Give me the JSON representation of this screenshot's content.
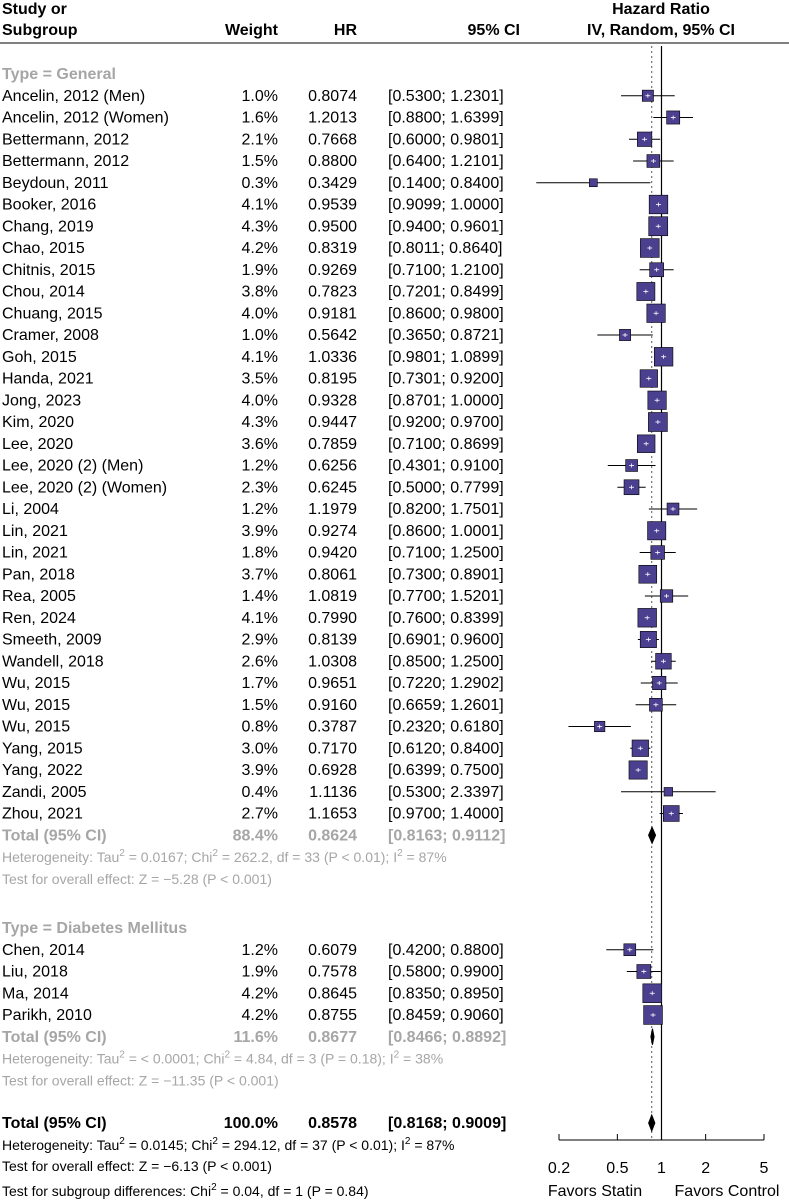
{
  "chart_data": {
    "type": "forest",
    "headers": {
      "study": [
        "Study or",
        "Subgroup"
      ],
      "weight": "Weight",
      "hr": "HR",
      "ci": "95% CI",
      "plot": [
        "Hazard Ratio",
        "IV, Random, 95% CI"
      ]
    },
    "subgroups": [
      {
        "label": "Type = General",
        "studies": [
          {
            "study": "Ancelin, 2012 (Men)",
            "weight": "1.0%",
            "hr": "0.8074",
            "ci": "[0.5300; 1.2301]",
            "est": 0.8074,
            "lo": 0.53,
            "hi": 1.2301
          },
          {
            "study": "Ancelin, 2012 (Women)",
            "weight": "1.6%",
            "hr": "1.2013",
            "ci": "[0.8800; 1.6399]",
            "est": 1.2013,
            "lo": 0.88,
            "hi": 1.6399
          },
          {
            "study": "Bettermann, 2012",
            "weight": "2.1%",
            "hr": "0.7668",
            "ci": "[0.6000; 0.9801]",
            "est": 0.7668,
            "lo": 0.6,
            "hi": 0.9801
          },
          {
            "study": "Bettermann, 2012",
            "weight": "1.5%",
            "hr": "0.8800",
            "ci": "[0.6400; 1.2101]",
            "est": 0.88,
            "lo": 0.64,
            "hi": 1.2101
          },
          {
            "study": "Beydoun, 2011",
            "weight": "0.3%",
            "hr": "0.3429",
            "ci": "[0.1400; 0.8400]",
            "est": 0.3429,
            "lo": 0.14,
            "hi": 0.84
          },
          {
            "study": "Booker, 2016",
            "weight": "4.1%",
            "hr": "0.9539",
            "ci": "[0.9099; 1.0000]",
            "est": 0.9539,
            "lo": 0.9099,
            "hi": 1.0
          },
          {
            "study": "Chang, 2019",
            "weight": "4.3%",
            "hr": "0.9500",
            "ci": "[0.9400; 0.9601]",
            "est": 0.95,
            "lo": 0.94,
            "hi": 0.9601
          },
          {
            "study": "Chao, 2015",
            "weight": "4.2%",
            "hr": "0.8319",
            "ci": "[0.8011; 0.8640]",
            "est": 0.8319,
            "lo": 0.8011,
            "hi": 0.864
          },
          {
            "study": "Chitnis, 2015",
            "weight": "1.9%",
            "hr": "0.9269",
            "ci": "[0.7100; 1.2100]",
            "est": 0.9269,
            "lo": 0.71,
            "hi": 1.21
          },
          {
            "study": "Chou, 2014",
            "weight": "3.8%",
            "hr": "0.7823",
            "ci": "[0.7201; 0.8499]",
            "est": 0.7823,
            "lo": 0.7201,
            "hi": 0.8499
          },
          {
            "study": "Chuang, 2015",
            "weight": "4.0%",
            "hr": "0.9181",
            "ci": "[0.8600; 0.9800]",
            "est": 0.9181,
            "lo": 0.86,
            "hi": 0.98
          },
          {
            "study": "Cramer, 2008",
            "weight": "1.0%",
            "hr": "0.5642",
            "ci": "[0.3650; 0.8721]",
            "est": 0.5642,
            "lo": 0.365,
            "hi": 0.8721
          },
          {
            "study": "Goh, 2015",
            "weight": "4.1%",
            "hr": "1.0336",
            "ci": "[0.9801; 1.0899]",
            "est": 1.0336,
            "lo": 0.9801,
            "hi": 1.0899
          },
          {
            "study": "Handa, 2021",
            "weight": "3.5%",
            "hr": "0.8195",
            "ci": "[0.7301; 0.9200]",
            "est": 0.8195,
            "lo": 0.7301,
            "hi": 0.92
          },
          {
            "study": "Jong, 2023",
            "weight": "4.0%",
            "hr": "0.9328",
            "ci": "[0.8701; 1.0000]",
            "est": 0.9328,
            "lo": 0.8701,
            "hi": 1.0
          },
          {
            "study": "Kim, 2020",
            "weight": "4.3%",
            "hr": "0.9447",
            "ci": "[0.9200; 0.9700]",
            "est": 0.9447,
            "lo": 0.92,
            "hi": 0.97
          },
          {
            "study": "Lee, 2020",
            "weight": "3.6%",
            "hr": "0.7859",
            "ci": "[0.7100; 0.8699]",
            "est": 0.7859,
            "lo": 0.71,
            "hi": 0.8699
          },
          {
            "study": "Lee, 2020 (2) (Men)",
            "weight": "1.2%",
            "hr": "0.6256",
            "ci": "[0.4301; 0.9100]",
            "est": 0.6256,
            "lo": 0.4301,
            "hi": 0.91
          },
          {
            "study": "Lee, 2020 (2) (Women)",
            "weight": "2.3%",
            "hr": "0.6245",
            "ci": "[0.5000; 0.7799]",
            "est": 0.6245,
            "lo": 0.5,
            "hi": 0.7799
          },
          {
            "study": "Li, 2004",
            "weight": "1.2%",
            "hr": "1.1979",
            "ci": "[0.8200; 1.7501]",
            "est": 1.1979,
            "lo": 0.82,
            "hi": 1.7501
          },
          {
            "study": "Lin, 2021",
            "weight": "3.9%",
            "hr": "0.9274",
            "ci": "[0.8600; 1.0001]",
            "est": 0.9274,
            "lo": 0.86,
            "hi": 1.0001
          },
          {
            "study": "Lin, 2021",
            "weight": "1.8%",
            "hr": "0.9420",
            "ci": "[0.7100; 1.2500]",
            "est": 0.942,
            "lo": 0.71,
            "hi": 1.25
          },
          {
            "study": "Pan, 2018",
            "weight": "3.7%",
            "hr": "0.8061",
            "ci": "[0.7300; 0.8901]",
            "est": 0.8061,
            "lo": 0.73,
            "hi": 0.8901
          },
          {
            "study": "Rea, 2005",
            "weight": "1.4%",
            "hr": "1.0819",
            "ci": "[0.7700; 1.5201]",
            "est": 1.0819,
            "lo": 0.77,
            "hi": 1.5201
          },
          {
            "study": "Ren, 2024",
            "weight": "4.1%",
            "hr": "0.7990",
            "ci": "[0.7600; 0.8399]",
            "est": 0.799,
            "lo": 0.76,
            "hi": 0.8399
          },
          {
            "study": "Smeeth, 2009",
            "weight": "2.9%",
            "hr": "0.8139",
            "ci": "[0.6901; 0.9600]",
            "est": 0.8139,
            "lo": 0.6901,
            "hi": 0.96
          },
          {
            "study": "Wandell, 2018",
            "weight": "2.6%",
            "hr": "1.0308",
            "ci": "[0.8500; 1.2500]",
            "est": 1.0308,
            "lo": 0.85,
            "hi": 1.25
          },
          {
            "study": "Wu, 2015",
            "weight": "1.7%",
            "hr": "0.9651",
            "ci": "[0.7220; 1.2902]",
            "est": 0.9651,
            "lo": 0.722,
            "hi": 1.2902
          },
          {
            "study": "Wu, 2015",
            "weight": "1.5%",
            "hr": "0.9160",
            "ci": "[0.6659; 1.2601]",
            "est": 0.916,
            "lo": 0.6659,
            "hi": 1.2601
          },
          {
            "study": "Wu, 2015",
            "weight": "0.8%",
            "hr": "0.3787",
            "ci": "[0.2320; 0.6180]",
            "est": 0.3787,
            "lo": 0.232,
            "hi": 0.618
          },
          {
            "study": "Yang, 2015",
            "weight": "3.0%",
            "hr": "0.7170",
            "ci": "[0.6120; 0.8400]",
            "est": 0.717,
            "lo": 0.612,
            "hi": 0.84
          },
          {
            "study": "Yang, 2022",
            "weight": "3.9%",
            "hr": "0.6928",
            "ci": "[0.6399; 0.7500]",
            "est": 0.6928,
            "lo": 0.6399,
            "hi": 0.75
          },
          {
            "study": "Zandi, 2005",
            "weight": "0.4%",
            "hr": "1.1136",
            "ci": "[0.5300; 2.3397]",
            "est": 1.1136,
            "lo": 0.53,
            "hi": 2.3397
          },
          {
            "study": "Zhou, 2021",
            "weight": "2.7%",
            "hr": "1.1653",
            "ci": "[0.9700; 1.4000]",
            "est": 1.1653,
            "lo": 0.97,
            "hi": 1.4
          }
        ],
        "total": {
          "label": "Total (95% CI)",
          "weight": "88.4%",
          "hr": "0.8624",
          "ci": "[0.8163; 0.9112]",
          "est": 0.8624,
          "lo": 0.8163,
          "hi": 0.9112
        },
        "heterogeneity": {
          "a": "Heterogeneity: Tau",
          "b": " = 0.0167; Chi",
          "c": " = 262.2, df = 33 (P < 0.01); I",
          "d": " = 87%"
        },
        "overall_effect": "Test for overall effect: Z = −5.28 (P < 0.001)"
      },
      {
        "label": "Type = Diabetes Mellitus",
        "studies": [
          {
            "study": "Chen, 2014",
            "weight": "1.2%",
            "hr": "0.6079",
            "ci": "[0.4200; 0.8800]",
            "est": 0.6079,
            "lo": 0.42,
            "hi": 0.88
          },
          {
            "study": "Liu, 2018",
            "weight": "1.9%",
            "hr": "0.7578",
            "ci": "[0.5800; 0.9900]",
            "est": 0.7578,
            "lo": 0.58,
            "hi": 0.99
          },
          {
            "study": "Ma, 2014",
            "weight": "4.2%",
            "hr": "0.8645",
            "ci": "[0.8350; 0.8950]",
            "est": 0.8645,
            "lo": 0.835,
            "hi": 0.895
          },
          {
            "study": "Parikh, 2010",
            "weight": "4.2%",
            "hr": "0.8755",
            "ci": "[0.8459; 0.9060]",
            "est": 0.8755,
            "lo": 0.8459,
            "hi": 0.906
          }
        ],
        "total": {
          "label": "Total (95% CI)",
          "weight": "11.6%",
          "hr": "0.8677",
          "ci": "[0.8466; 0.8892]",
          "est": 0.8677,
          "lo": 0.8466,
          "hi": 0.8892
        },
        "heterogeneity": {
          "a": "Heterogeneity: Tau",
          "b": " = < 0.0001; Chi",
          "c": " = 4.84, df = 3 (P = 0.18); I",
          "d": " = 38%"
        },
        "overall_effect": "Test for overall effect: Z = −11.35 (P < 0.001)"
      }
    ],
    "overall": {
      "label": "Total (95% CI)",
      "weight": "100.0%",
      "hr": "0.8578",
      "ci": "[0.8168; 0.9009]",
      "est": 0.8578,
      "lo": 0.8168,
      "hi": 0.9009
    },
    "overall_heterogeneity": {
      "a": "Heterogeneity: Tau",
      "b": " = 0.0145; Chi",
      "c": " = 294.12, df = 37 (P < 0.01); I",
      "d": " = 87%"
    },
    "overall_effect": "Test for overall effect: Z = −6.13 (P < 0.001)",
    "subgroup_test": {
      "a": "Test for subgroup differences: Chi",
      "b": " = 0.04, df = 1 (P = 0.84)"
    },
    "superscript": "2",
    "x_axis": {
      "scale": "log",
      "ticks": [
        0.2,
        0.5,
        1,
        2,
        5
      ],
      "tick_labels": [
        "0.2",
        "0.5",
        "1",
        "2",
        "5"
      ]
    },
    "favors_left": "Favors Statin",
    "favors_right": "Favors Control",
    "marker_color": "#4b3f8f"
  }
}
